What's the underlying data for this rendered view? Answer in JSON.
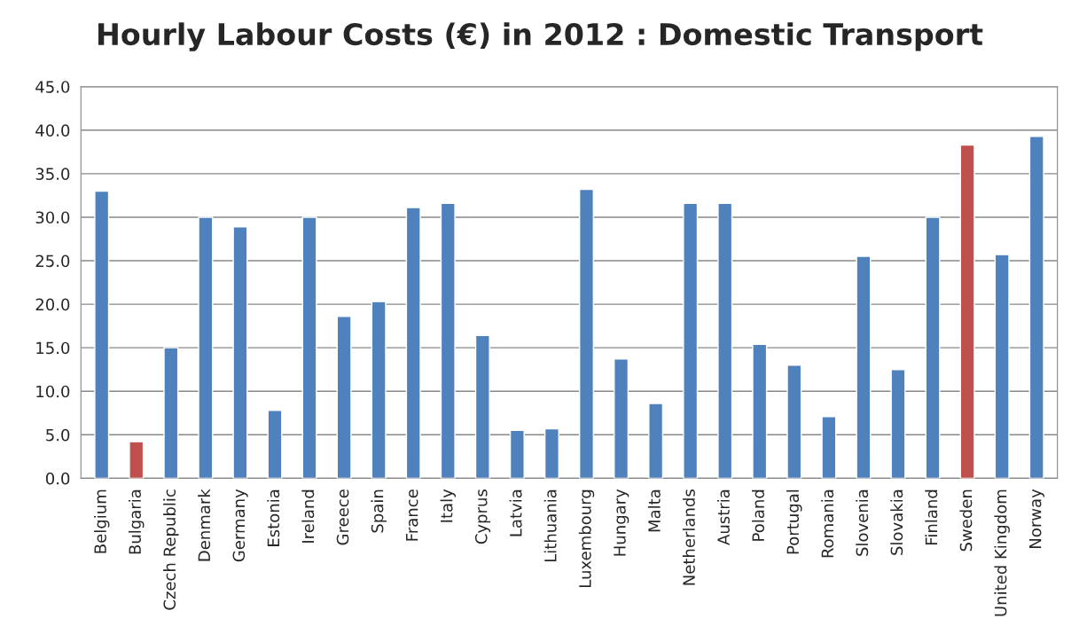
{
  "chart_data": {
    "type": "bar",
    "title": "Hourly Labour Costs (€) in 2012 : Domestic Transport",
    "categories": [
      "Belgium",
      "Bulgaria",
      "Czech Republic",
      "Denmark",
      "Germany",
      "Estonia",
      "Ireland",
      "Greece",
      "Spain",
      "France",
      "Italy",
      "Cyprus",
      "Latvia",
      "Lithuania",
      "Luxembourg",
      "Hungary",
      "Malta",
      "Netherlands",
      "Austria",
      "Poland",
      "Portugal",
      "Romania",
      "Slovenia",
      "Slovakia",
      "Finland",
      "Sweden",
      "United Kingdom",
      "Norway"
    ],
    "values": [
      33.0,
      4.2,
      15.0,
      30.0,
      28.9,
      7.8,
      30.0,
      18.6,
      20.3,
      31.1,
      31.6,
      16.4,
      5.5,
      5.7,
      33.2,
      13.7,
      8.6,
      31.6,
      31.6,
      15.4,
      13.0,
      7.1,
      25.5,
      12.5,
      30.0,
      38.3,
      25.7,
      39.3
    ],
    "colors": [
      "#4f81bd",
      "#c0504d",
      "#4f81bd",
      "#4f81bd",
      "#4f81bd",
      "#4f81bd",
      "#4f81bd",
      "#4f81bd",
      "#4f81bd",
      "#4f81bd",
      "#4f81bd",
      "#4f81bd",
      "#4f81bd",
      "#4f81bd",
      "#4f81bd",
      "#4f81bd",
      "#4f81bd",
      "#4f81bd",
      "#4f81bd",
      "#4f81bd",
      "#4f81bd",
      "#4f81bd",
      "#4f81bd",
      "#4f81bd",
      "#4f81bd",
      "#c0504d",
      "#4f81bd",
      "#4f81bd"
    ],
    "ylim": [
      0,
      45
    ],
    "yticks": [
      {
        "value": 0,
        "label": "0.0"
      },
      {
        "value": 5,
        "label": "5.0"
      },
      {
        "value": 10,
        "label": "10.0"
      },
      {
        "value": 15,
        "label": "15.0"
      },
      {
        "value": 20,
        "label": "20.0"
      },
      {
        "value": 25,
        "label": "25.0"
      },
      {
        "value": 30,
        "label": "30.0"
      },
      {
        "value": 35,
        "label": "35.0"
      },
      {
        "value": 40,
        "label": "40.0"
      },
      {
        "value": 45,
        "label": "45.0"
      }
    ],
    "grid": "y"
  }
}
